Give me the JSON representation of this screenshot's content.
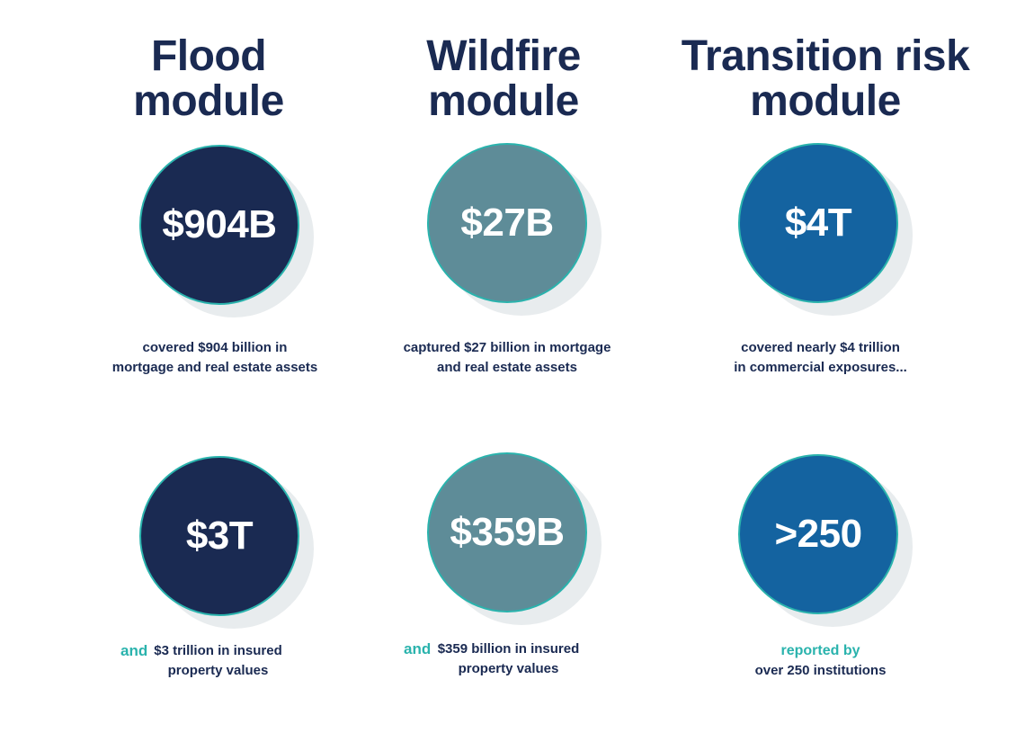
{
  "colors": {
    "navy": "#1a2a52",
    "teal_gray": "#5e8c98",
    "blue": "#1463a0",
    "teal_accent": "#2ab3ad"
  },
  "columns": [
    {
      "title_line1": "Flood",
      "title_line2": "module",
      "stat_1": "$904B",
      "caption_1_line1": "covered $904 billion in",
      "caption_1_line2": "mortgage and real estate assets",
      "stat_2": "$3T",
      "caption_2_accent": "and",
      "caption_2_line1": "$3 trillion in insured",
      "caption_2_line2": "property values"
    },
    {
      "title_line1": "Wildfire",
      "title_line2": "module",
      "stat_1": "$27B",
      "caption_1_line1": "captured $27 billion in mortgage",
      "caption_1_line2": "and real estate assets",
      "stat_2": "$359B",
      "caption_2_accent": "and",
      "caption_2_line1": "$359 billion in insured",
      "caption_2_line2": "property values"
    },
    {
      "title_line1": "Transition risk",
      "title_line2": "module",
      "stat_1": "$4T",
      "caption_1_line1": "covered nearly $4 trillion",
      "caption_1_line2": "in commercial exposures...",
      "stat_2": ">250",
      "caption_2_accent": "reported by",
      "caption_2_line1": "over 250 institutions"
    }
  ]
}
